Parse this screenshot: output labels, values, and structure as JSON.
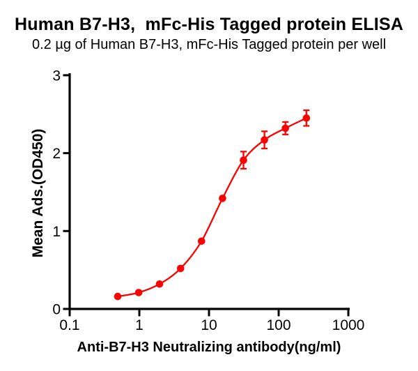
{
  "colors": {
    "series_red": "#FA0202",
    "axis_black": "#000000",
    "background": "#FFFFFF"
  },
  "chart_data": {
    "type": "scatter",
    "curve_style": "sigmoid-4PL-fit-line",
    "title": "Human B7-H3,  mFc-His Tagged protein ELISA",
    "subtitle": "0.2 µg of Human B7-H3, mFc-His Tagged protein per well",
    "xlabel": "Anti-B7-H3 Neutralizing antibody(ng/ml)",
    "ylabel": "Mean Ads.(OD450)",
    "x_scale": "log10",
    "xlim": [
      0.1,
      1000
    ],
    "ylim": [
      0,
      3
    ],
    "grid": false,
    "legend": "none",
    "x_ticks": [
      {
        "value": 0.1,
        "label": "0.1"
      },
      {
        "value": 1,
        "label": "1"
      },
      {
        "value": 10,
        "label": "10"
      },
      {
        "value": 100,
        "label": "100"
      },
      {
        "value": 1000,
        "label": "1000"
      }
    ],
    "y_ticks": [
      {
        "value": 0,
        "label": "0"
      },
      {
        "value": 1,
        "label": "1"
      },
      {
        "value": 2,
        "label": "2"
      },
      {
        "value": 3,
        "label": "3"
      }
    ],
    "series": [
      {
        "name": "Anti-B7-H3 Neutralizing antibody",
        "color": "#FA0202",
        "marker": "circle",
        "x": [
          0.49,
          0.98,
          1.95,
          3.91,
          7.81,
          15.63,
          31.25,
          62.5,
          125,
          250
        ],
        "y": [
          0.16,
          0.21,
          0.32,
          0.52,
          0.87,
          1.42,
          1.91,
          2.17,
          2.32,
          2.45
        ],
        "y_err": [
          0,
          0,
          0,
          0,
          0,
          0,
          0.11,
          0.11,
          0.08,
          0.1
        ]
      }
    ]
  }
}
